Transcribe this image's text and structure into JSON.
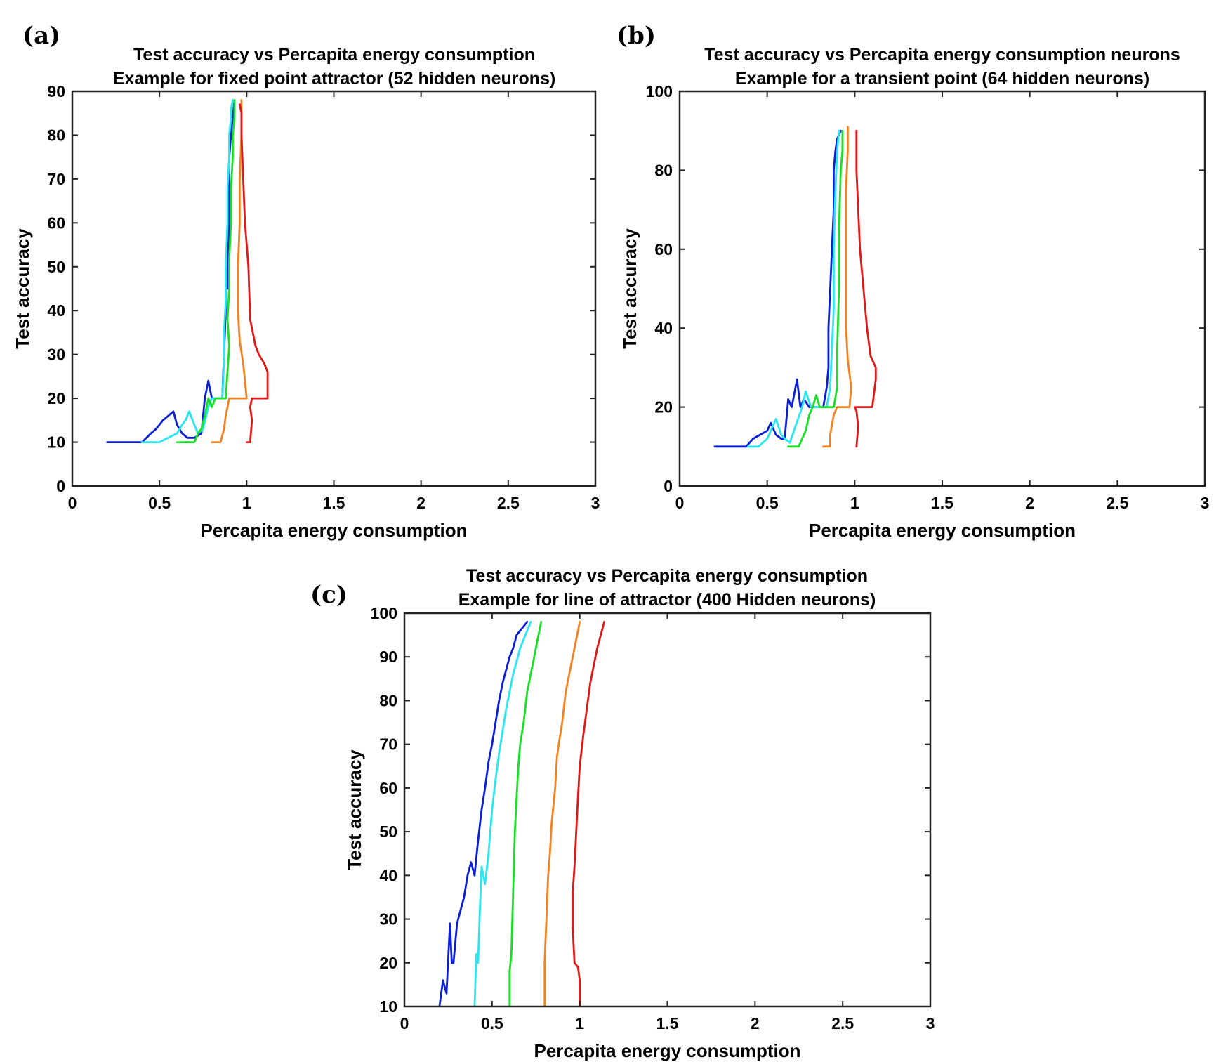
{
  "chart_data": [
    {
      "panel_label": "(a)",
      "type": "line",
      "title": "Test accuracy vs Percapita energy consumption",
      "subtitle": "Example for fixed point attractor (52 hidden neurons)",
      "xlabel": "Percapita energy consumption",
      "ylabel": "Test accuracy",
      "xlim": [
        0,
        3
      ],
      "ylim": [
        0,
        90
      ],
      "xticks": [
        "0",
        "0.5",
        "1",
        "1.5",
        "2",
        "2.5",
        "3"
      ],
      "yticks": [
        "0",
        "10",
        "20",
        "30",
        "40",
        "50",
        "60",
        "70",
        "80",
        "90"
      ],
      "grid": false,
      "series": [
        {
          "color": "#0a1fd6",
          "x": [
            0.2,
            0.4,
            0.45,
            0.48,
            0.5,
            0.52,
            0.55,
            0.58,
            0.6,
            0.63,
            0.66,
            0.7,
            0.74,
            0.76,
            0.78,
            0.8,
            0.83,
            0.86,
            0.87,
            0.88,
            0.88,
            0.89,
            0.89,
            0.9,
            0.9,
            0.9,
            0.91,
            0.92,
            0.93
          ],
          "y": [
            10,
            10,
            12,
            13,
            14,
            15,
            16,
            17,
            14,
            12,
            11,
            11,
            12,
            20,
            24,
            20,
            20,
            20,
            30,
            40,
            46,
            45,
            52,
            60,
            68,
            75,
            80,
            84,
            88
          ]
        },
        {
          "color": "#29e6f0",
          "x": [
            0.4,
            0.5,
            0.55,
            0.6,
            0.63,
            0.65,
            0.67,
            0.7,
            0.72,
            0.75,
            0.78,
            0.8,
            0.82,
            0.84,
            0.86,
            0.87,
            0.87,
            0.88,
            0.88,
            0.89,
            0.89,
            0.9,
            0.9,
            0.91,
            0.91,
            0.92
          ],
          "y": [
            10,
            10,
            11,
            12,
            14,
            15,
            17,
            14,
            12,
            13,
            18,
            20,
            20,
            20,
            20,
            28,
            35,
            42,
            50,
            60,
            68,
            75,
            80,
            84,
            86,
            88
          ]
        },
        {
          "color": "#18e024",
          "x": [
            0.6,
            0.7,
            0.72,
            0.74,
            0.76,
            0.78,
            0.8,
            0.82,
            0.85,
            0.88,
            0.9,
            0.89,
            0.9,
            0.9,
            0.91,
            0.91,
            0.92,
            0.92,
            0.93,
            0.93
          ],
          "y": [
            10,
            10,
            12,
            13,
            16,
            20,
            18,
            20,
            20,
            20,
            32,
            38,
            45,
            52,
            60,
            68,
            75,
            80,
            84,
            88
          ]
        },
        {
          "color": "#f58220",
          "x": [
            0.8,
            0.85,
            0.87,
            0.88,
            0.9,
            0.92,
            0.96,
            1.0,
            0.98,
            0.96,
            0.95,
            0.95,
            0.96,
            0.96,
            0.97,
            0.97
          ],
          "y": [
            10,
            10,
            13,
            16,
            20,
            20,
            20,
            20,
            28,
            33,
            40,
            50,
            60,
            70,
            80,
            88
          ]
        },
        {
          "color": "#e01818",
          "x": [
            1.0,
            1.02,
            1.03,
            1.02,
            1.03,
            1.06,
            1.1,
            1.12,
            1.12,
            1.1,
            1.07,
            1.05,
            1.02,
            1.01,
            0.99,
            0.98,
            0.97,
            0.97,
            0.96
          ],
          "y": [
            10,
            10,
            15,
            18,
            20,
            20,
            20,
            20,
            26,
            28,
            30,
            32,
            38,
            50,
            60,
            70,
            80,
            85,
            87
          ]
        }
      ]
    },
    {
      "panel_label": "(b)",
      "type": "line",
      "title": "Test accuracy vs Percapita energy consumption neurons",
      "subtitle": "Example for a transient point (64 hidden neurons)",
      "xlabel": "Percapita energy consumption",
      "ylabel": "Test accuracy",
      "xlim": [
        0,
        3
      ],
      "ylim": [
        0,
        100
      ],
      "xticks": [
        "0",
        "0.5",
        "1",
        "1.5",
        "2",
        "2.5",
        "3"
      ],
      "yticks": [
        "0",
        "20",
        "40",
        "60",
        "80",
        "100"
      ],
      "grid": false,
      "series": [
        {
          "color": "#0a1fd6",
          "x": [
            0.2,
            0.38,
            0.42,
            0.46,
            0.5,
            0.52,
            0.55,
            0.58,
            0.6,
            0.62,
            0.64,
            0.67,
            0.69,
            0.71,
            0.74,
            0.78,
            0.82,
            0.84,
            0.85,
            0.85,
            0.86,
            0.87,
            0.88,
            0.88,
            0.89,
            0.9,
            0.92
          ],
          "y": [
            10,
            10,
            12,
            13,
            14,
            16,
            13,
            12,
            12,
            22,
            20,
            27,
            20,
            22,
            20,
            20,
            20,
            25,
            30,
            40,
            50,
            60,
            70,
            80,
            85,
            88,
            90
          ]
        },
        {
          "color": "#29e6f0",
          "x": [
            0.39,
            0.45,
            0.5,
            0.52,
            0.55,
            0.58,
            0.6,
            0.63,
            0.66,
            0.7,
            0.72,
            0.75,
            0.78,
            0.8,
            0.84,
            0.86,
            0.87,
            0.88,
            0.88,
            0.89,
            0.9,
            0.91
          ],
          "y": [
            10,
            10,
            12,
            14,
            17,
            13,
            12,
            11,
            15,
            20,
            24,
            20,
            20,
            20,
            20,
            25,
            35,
            45,
            60,
            75,
            85,
            90
          ]
        },
        {
          "color": "#18e024",
          "x": [
            0.62,
            0.68,
            0.7,
            0.72,
            0.74,
            0.76,
            0.78,
            0.8,
            0.84,
            0.88,
            0.9,
            0.9,
            0.91,
            0.91,
            0.92,
            0.93,
            0.93
          ],
          "y": [
            10,
            10,
            12,
            14,
            18,
            20,
            23,
            20,
            20,
            20,
            25,
            35,
            50,
            65,
            80,
            85,
            90
          ]
        },
        {
          "color": "#f58220",
          "x": [
            0.82,
            0.86,
            0.86,
            0.88,
            0.9,
            0.93,
            0.97,
            0.98,
            0.96,
            0.95,
            0.95,
            0.95,
            0.96,
            0.96
          ],
          "y": [
            10,
            10,
            13,
            18,
            20,
            20,
            20,
            25,
            32,
            40,
            60,
            75,
            85,
            91
          ]
        },
        {
          "color": "#e01818",
          "x": [
            1.01,
            1.02,
            1.01,
            1.0,
            1.03,
            1.06,
            1.1,
            1.12,
            1.12,
            1.09,
            1.07,
            1.05,
            1.04,
            1.03,
            1.02,
            1.01,
            1.01
          ],
          "y": [
            10,
            15,
            19,
            20,
            20,
            20,
            20,
            27,
            30,
            33,
            40,
            50,
            55,
            60,
            70,
            80,
            90
          ]
        }
      ]
    },
    {
      "panel_label": "(c)",
      "type": "line",
      "title": "Test accuracy vs Percapita energy consumption",
      "subtitle": "Example for line of attractor (400 Hidden neurons)",
      "xlabel": "Percapita energy consumption",
      "ylabel": "Test accuracy",
      "xlim": [
        0,
        3
      ],
      "ylim": [
        10,
        100
      ],
      "xticks": [
        "0",
        "0.5",
        "1",
        "1.5",
        "2",
        "2.5",
        "3"
      ],
      "yticks": [
        "10",
        "20",
        "30",
        "40",
        "50",
        "60",
        "70",
        "80",
        "90",
        "100"
      ],
      "grid": false,
      "series": [
        {
          "color": "#0a1fd6",
          "x": [
            0.2,
            0.22,
            0.24,
            0.26,
            0.27,
            0.28,
            0.3,
            0.32,
            0.34,
            0.36,
            0.38,
            0.4,
            0.42,
            0.44,
            0.46,
            0.48,
            0.5,
            0.52,
            0.54,
            0.56,
            0.58,
            0.6,
            0.62,
            0.64,
            0.66,
            0.68,
            0.7
          ],
          "y": [
            10,
            16,
            13,
            29,
            20,
            20,
            29,
            32,
            35,
            40,
            43,
            40,
            48,
            55,
            60,
            66,
            70,
            75,
            80,
            84,
            87,
            90,
            92,
            95,
            96,
            97,
            98
          ]
        },
        {
          "color": "#29e6f0",
          "x": [
            0.4,
            0.41,
            0.42,
            0.43,
            0.44,
            0.46,
            0.48,
            0.5,
            0.52,
            0.54,
            0.56,
            0.58,
            0.6,
            0.62,
            0.64,
            0.66,
            0.68,
            0.7,
            0.72
          ],
          "y": [
            10,
            22,
            20,
            32,
            42,
            38,
            45,
            55,
            62,
            68,
            73,
            78,
            82,
            86,
            89,
            92,
            94,
            96,
            98
          ]
        },
        {
          "color": "#18e024",
          "x": [
            0.6,
            0.6,
            0.61,
            0.62,
            0.63,
            0.64,
            0.65,
            0.66,
            0.68,
            0.7,
            0.72,
            0.74,
            0.76,
            0.78
          ],
          "y": [
            10,
            18,
            22,
            36,
            50,
            58,
            65,
            70,
            75,
            82,
            86,
            90,
            94,
            98
          ]
        },
        {
          "color": "#f58220",
          "x": [
            0.8,
            0.8,
            0.81,
            0.82,
            0.83,
            0.84,
            0.86,
            0.87,
            0.88,
            0.9,
            0.92,
            0.94,
            0.96,
            0.98,
            1.0
          ],
          "y": [
            10,
            20,
            30,
            40,
            45,
            52,
            60,
            67,
            70,
            75,
            82,
            86,
            90,
            94,
            98
          ]
        },
        {
          "color": "#e01818",
          "x": [
            1.0,
            1.0,
            0.99,
            0.97,
            0.96,
            0.96,
            0.97,
            0.98,
            0.99,
            1.0,
            1.02,
            1.04,
            1.06,
            1.08,
            1.1,
            1.12,
            1.14
          ],
          "y": [
            10,
            16,
            19,
            20,
            28,
            36,
            42,
            50,
            58,
            65,
            72,
            78,
            84,
            88,
            92,
            95,
            98
          ]
        }
      ]
    }
  ]
}
